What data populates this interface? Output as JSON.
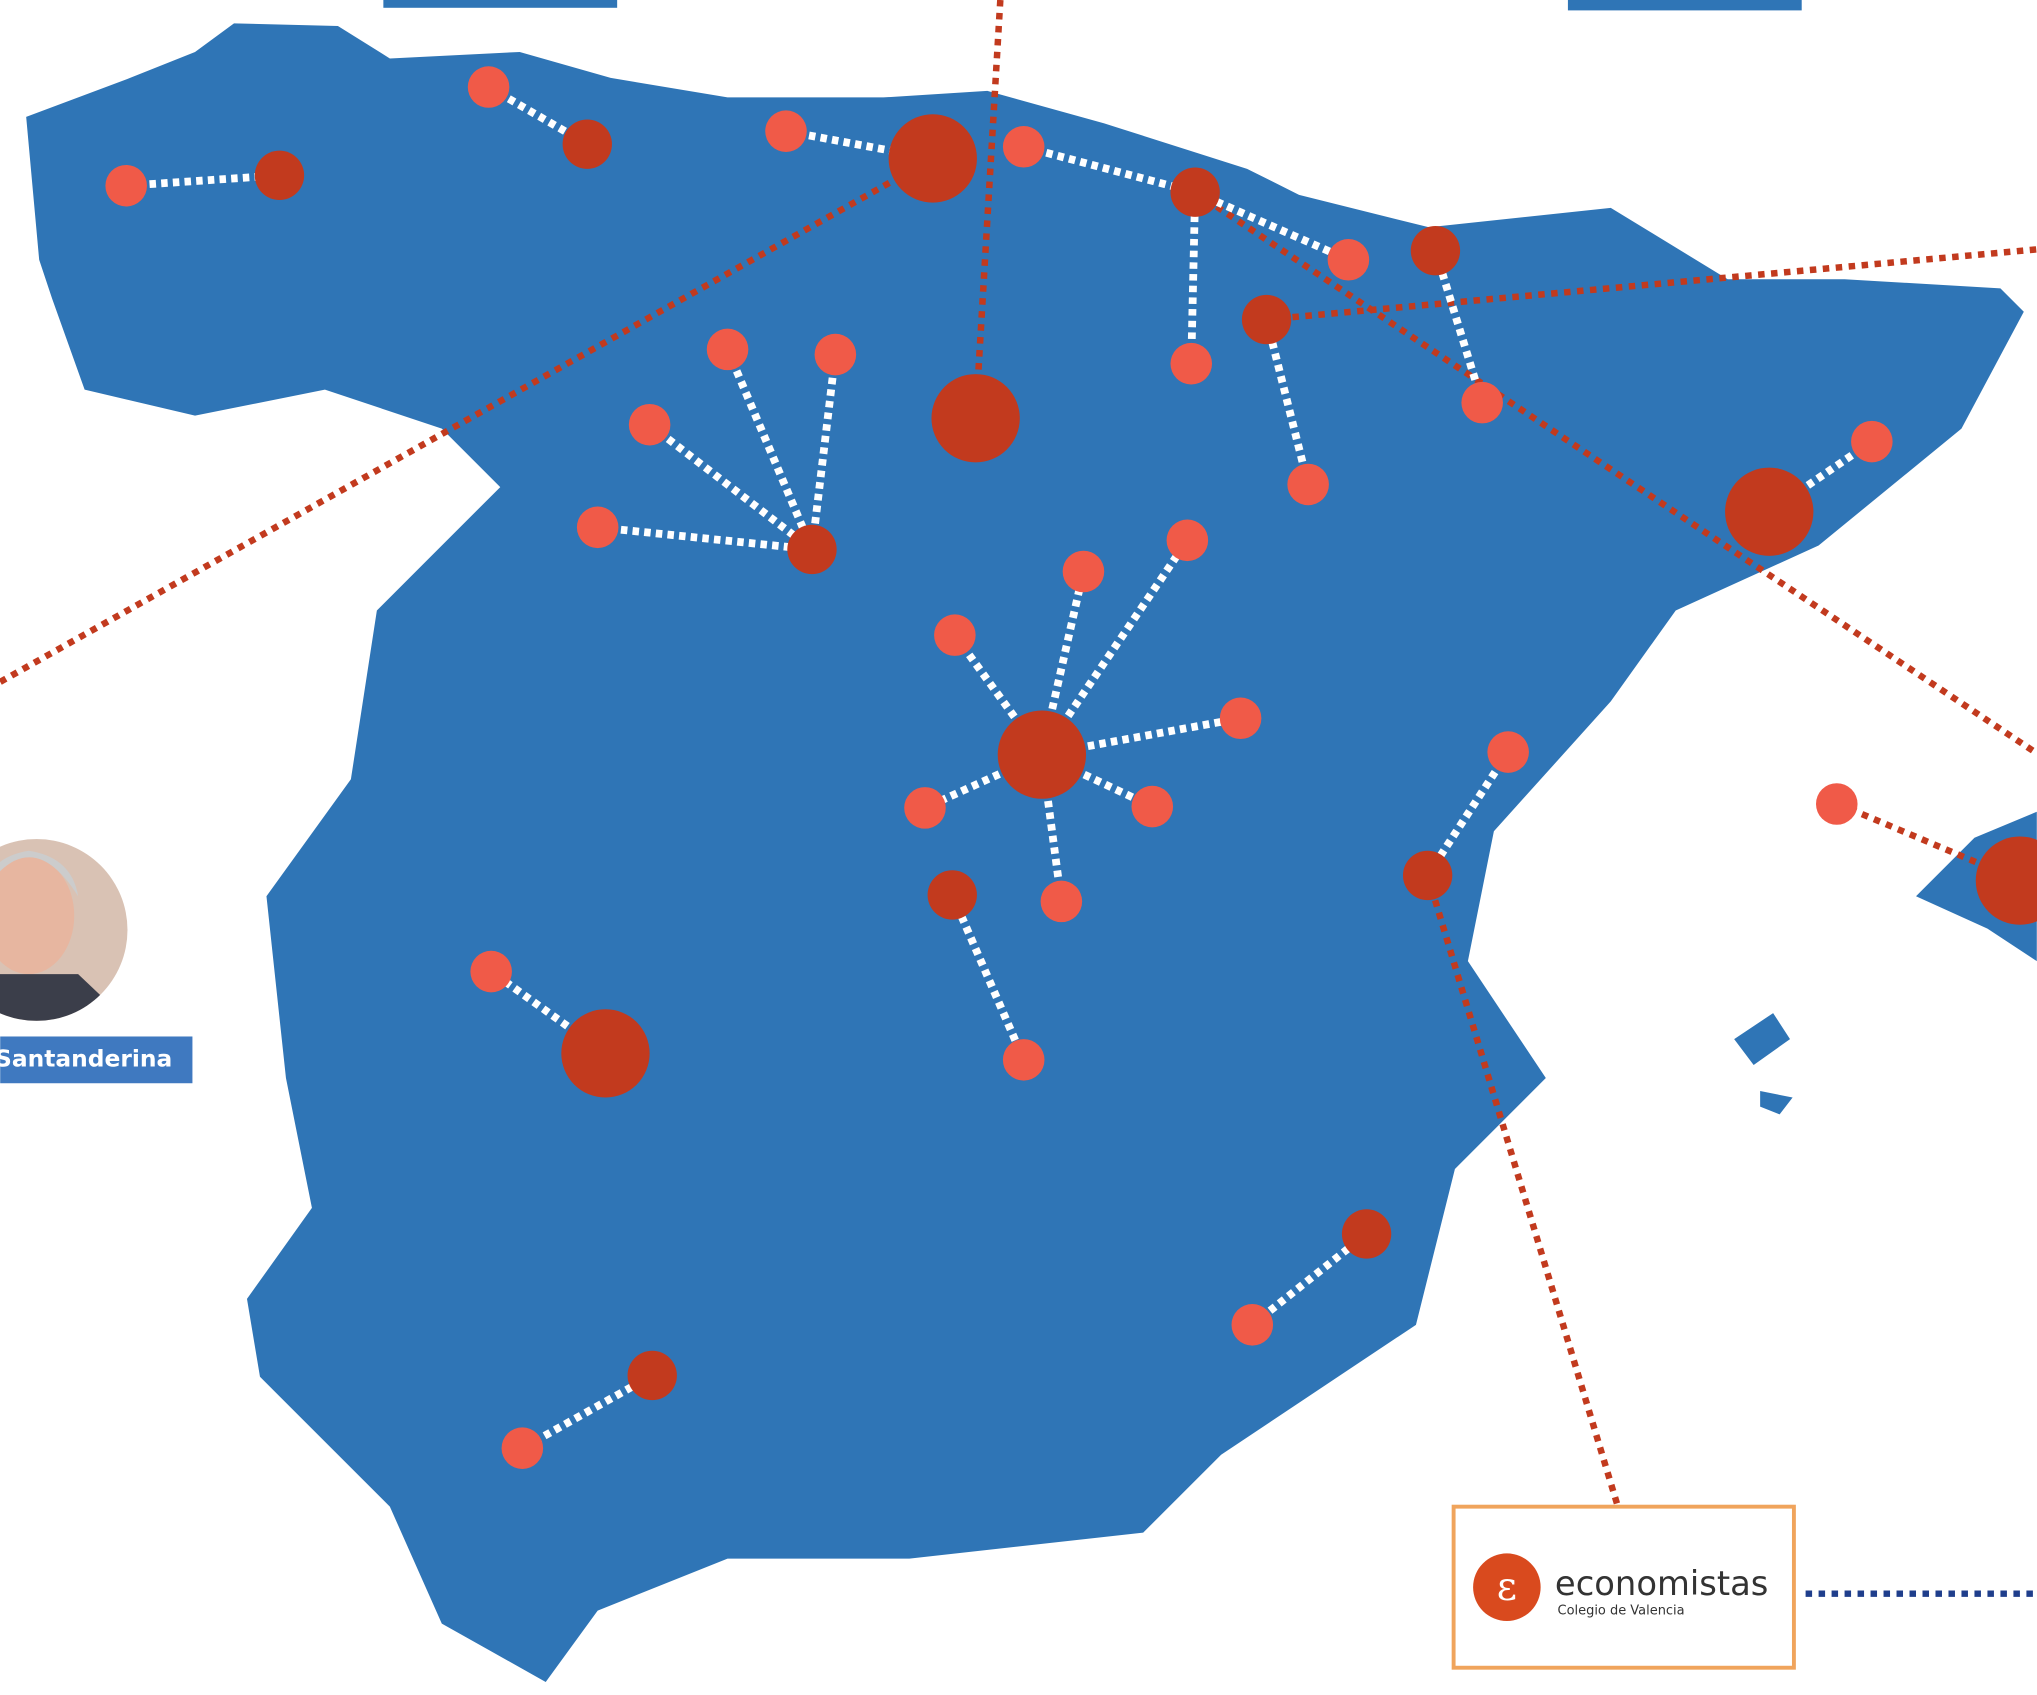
{
  "labels": {
    "person": "Santanderina",
    "logo_name": "economistas",
    "logo_sub": "Colegio de Valencia"
  }
}
